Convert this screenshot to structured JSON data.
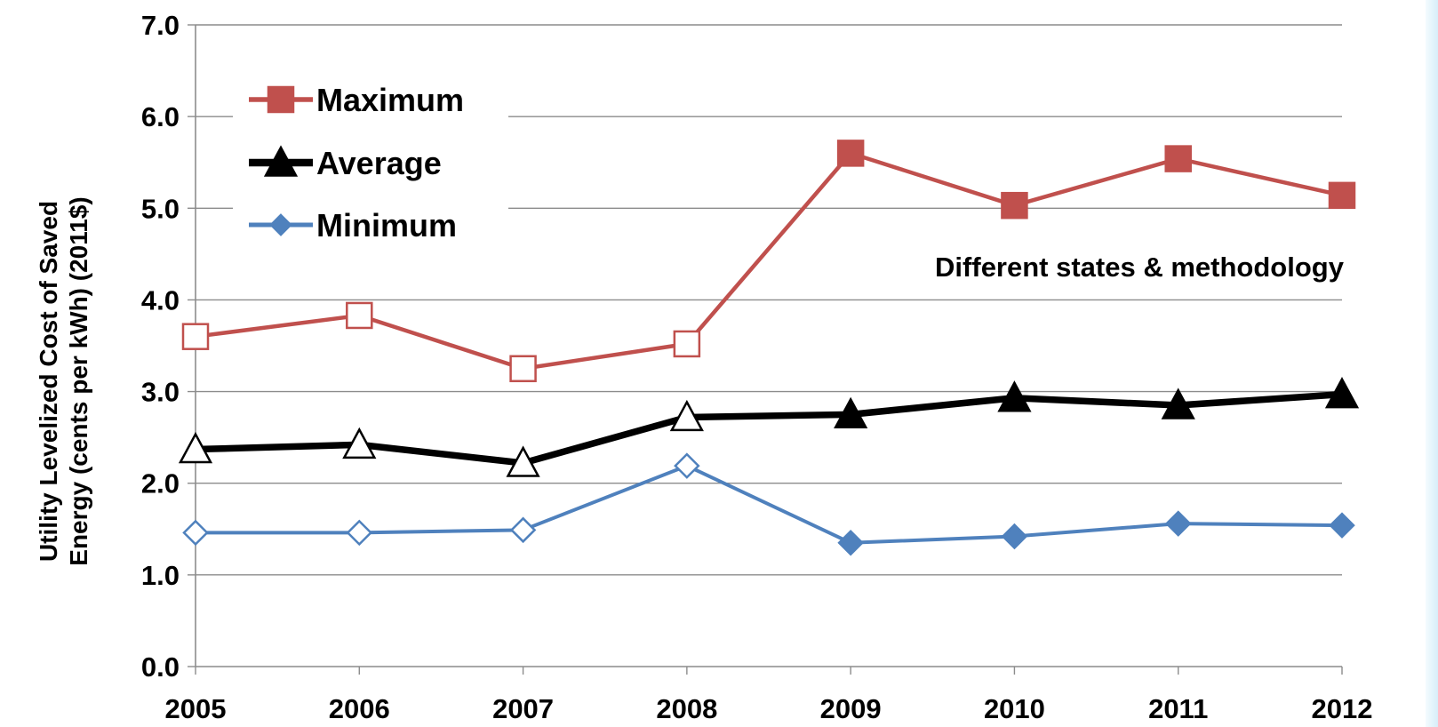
{
  "chart_data": {
    "type": "line",
    "title": "",
    "xlabel": "",
    "ylabel_lines": [
      "Utility Levelized Cost of Saved",
      "Energy (cents per kWh) (2011$)"
    ],
    "categories": [
      "2005",
      "2006",
      "2007",
      "2008",
      "2009",
      "2010",
      "2011",
      "2012"
    ],
    "y_ticks": [
      "0.0",
      "1.0",
      "2.0",
      "3.0",
      "4.0",
      "5.0",
      "6.0",
      "7.0"
    ],
    "ylim": [
      0,
      7
    ],
    "grid": "horizontal",
    "legend_position": "top-left",
    "annotation": "Different states & methodology",
    "hollow_marker_years": [
      "2005",
      "2006",
      "2007",
      "2008"
    ],
    "series": [
      {
        "name": "Maximum",
        "marker": "square",
        "color": "#c0504d",
        "values": [
          3.6,
          3.83,
          3.25,
          3.52,
          5.6,
          5.03,
          5.54,
          5.14
        ]
      },
      {
        "name": "Average",
        "marker": "triangle",
        "color": "#000000",
        "values": [
          2.37,
          2.42,
          2.22,
          2.72,
          2.75,
          2.93,
          2.85,
          2.97
        ]
      },
      {
        "name": "Minimum",
        "marker": "diamond",
        "color": "#4f81bd",
        "values": [
          1.46,
          1.46,
          1.49,
          2.19,
          1.35,
          1.42,
          1.56,
          1.54
        ]
      }
    ]
  }
}
